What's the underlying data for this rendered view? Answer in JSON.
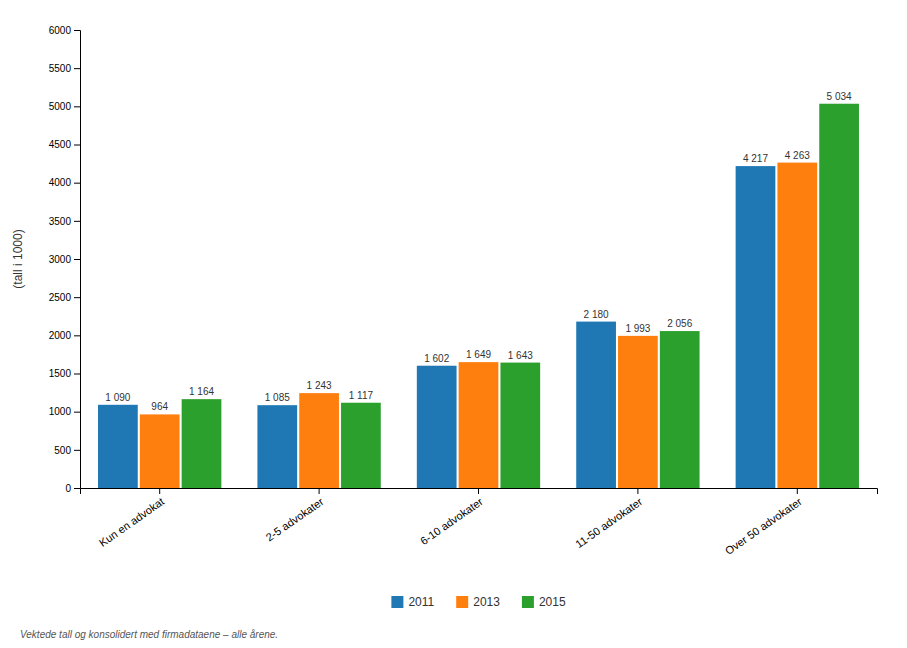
{
  "chart_data": {
    "type": "bar",
    "categories": [
      "Kun en advokat",
      "2-5 advokater",
      "6-10 advokater",
      "11-50 advokater",
      "Over 50 advokater"
    ],
    "series": [
      {
        "name": "2011",
        "values": [
          1090,
          1085,
          1602,
          2180,
          4217
        ],
        "value_labels": [
          "1 090",
          "1 085",
          "1 602",
          "2 180",
          "4 217"
        ]
      },
      {
        "name": "2013",
        "values": [
          964,
          1243,
          1649,
          1993,
          4263
        ],
        "value_labels": [
          "964",
          "1 243",
          "1 649",
          "1 993",
          "4 263"
        ]
      },
      {
        "name": "2015",
        "values": [
          1164,
          1117,
          1643,
          2056,
          5034
        ],
        "value_labels": [
          "1 164",
          "1 117",
          "1 643",
          "2 056",
          "5 034"
        ]
      }
    ],
    "y_label": "(tall i 1000)",
    "ylim": [
      0,
      6000
    ],
    "yticks": [
      0,
      500,
      1000,
      1500,
      2000,
      2500,
      3000,
      3500,
      4000,
      4500,
      5000,
      5500,
      6000
    ],
    "grid": false,
    "legend": "bottom",
    "data_labels": true,
    "annotations": [
      "Vektede tall og konsolidert med firmadataene – alle årene."
    ]
  }
}
